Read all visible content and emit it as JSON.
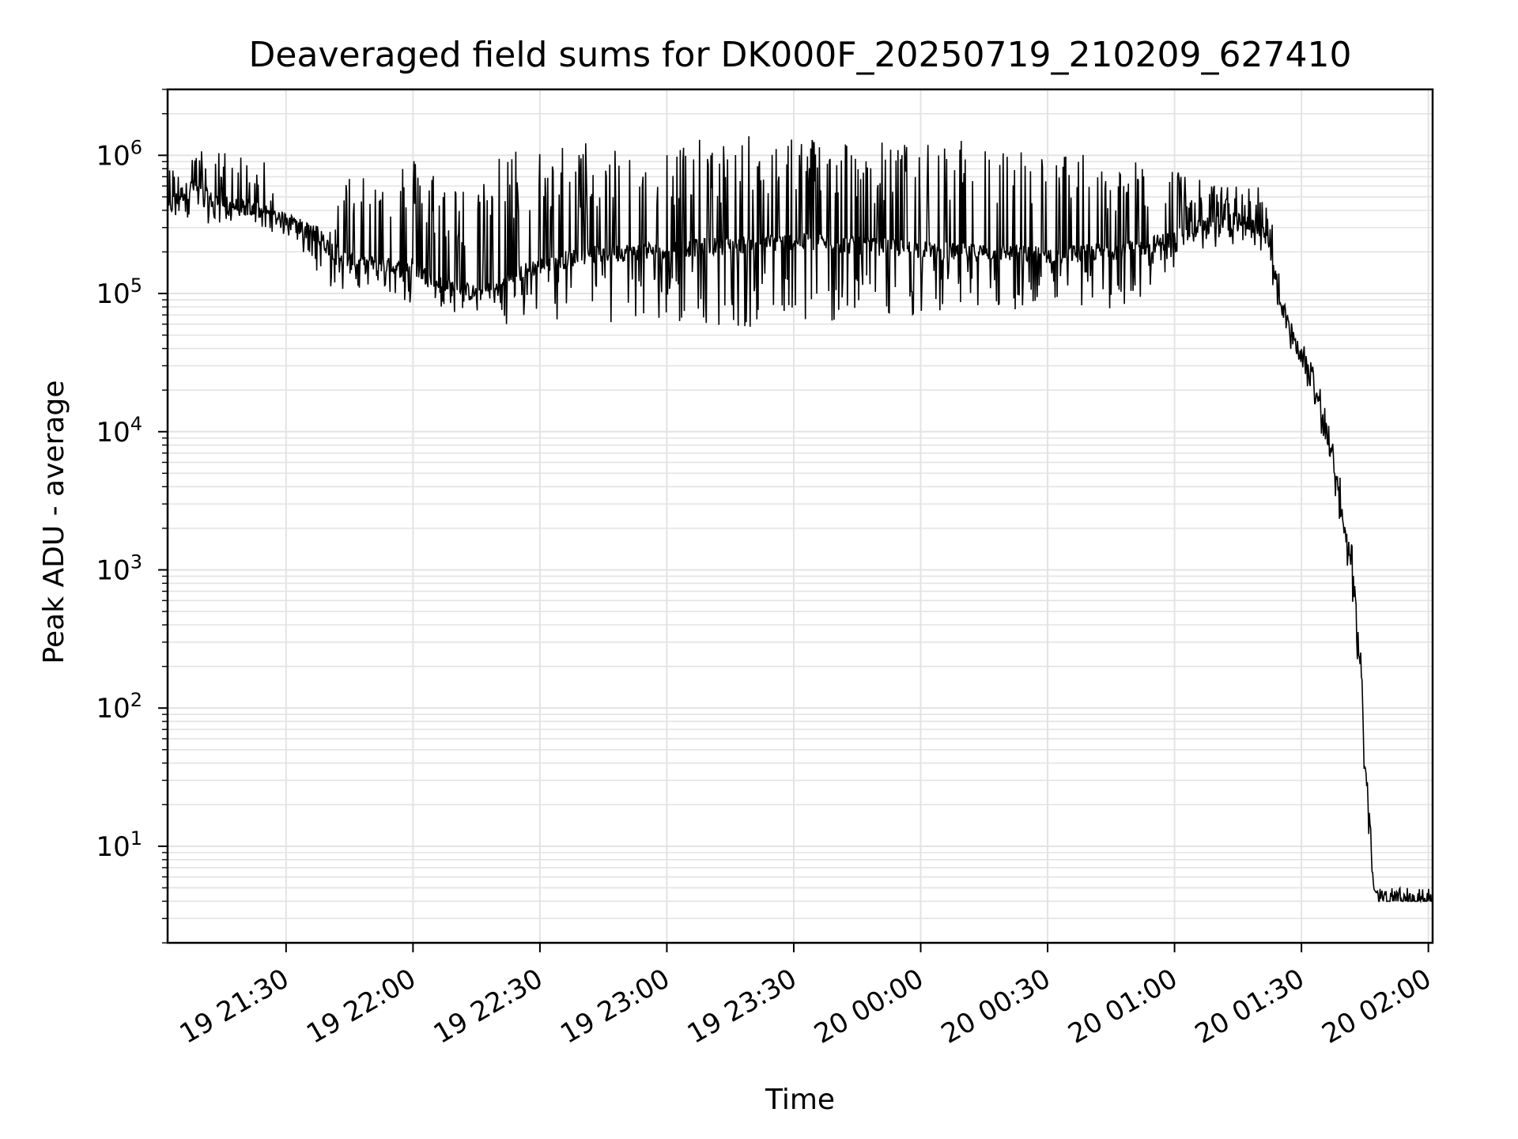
{
  "chart_data": {
    "type": "line",
    "title": "Deaveraged field sums for DK000F_20250719_210209_627410",
    "xlabel": "Time",
    "ylabel": "Peak ADU - average",
    "xlim": [
      "2025-07-19 21:02",
      "2025-07-20 02:01"
    ],
    "ylim": [
      2,
      3000000
    ],
    "yscale": "log",
    "grid": true,
    "line_color": "#000000",
    "x_ticks": [
      {
        "t": "2025-07-19 21:30",
        "label": "19 21:30"
      },
      {
        "t": "2025-07-19 22:00",
        "label": "19 22:00"
      },
      {
        "t": "2025-07-19 22:30",
        "label": "19 22:30"
      },
      {
        "t": "2025-07-19 23:00",
        "label": "19 23:00"
      },
      {
        "t": "2025-07-19 23:30",
        "label": "19 23:30"
      },
      {
        "t": "2025-07-20 00:00",
        "label": "20 00:00"
      },
      {
        "t": "2025-07-20 00:30",
        "label": "20 00:30"
      },
      {
        "t": "2025-07-20 01:00",
        "label": "20 01:00"
      },
      {
        "t": "2025-07-20 01:30",
        "label": "20 01:30"
      },
      {
        "t": "2025-07-20 02:00",
        "label": "20 02:00"
      }
    ],
    "y_ticks": [
      {
        "value": 10,
        "base": "10",
        "exp": "1"
      },
      {
        "value": 100,
        "base": "10",
        "exp": "2"
      },
      {
        "value": 1000,
        "base": "10",
        "exp": "3"
      },
      {
        "value": 10000,
        "base": "10",
        "exp": "4"
      },
      {
        "value": 100000,
        "base": "10",
        "exp": "5"
      },
      {
        "value": 1000000,
        "base": "10",
        "exp": "6"
      }
    ],
    "series": [
      {
        "x": [
          "2025-07-19 21:02",
          "2025-07-19 21:05",
          "2025-07-19 21:08",
          "2025-07-19 21:12",
          "2025-07-19 21:16",
          "2025-07-19 21:20",
          "2025-07-19 21:24",
          "2025-07-19 21:28",
          "2025-07-19 21:32",
          "2025-07-19 21:36",
          "2025-07-19 21:40",
          "2025-07-19 21:44",
          "2025-07-19 21:48",
          "2025-07-19 21:52",
          "2025-07-19 21:56",
          "2025-07-19 22:00",
          "2025-07-19 22:05",
          "2025-07-19 22:10",
          "2025-07-19 22:15",
          "2025-07-19 22:20",
          "2025-07-19 22:25",
          "2025-07-19 22:30",
          "2025-07-19 22:40",
          "2025-07-19 22:50",
          "2025-07-19 23:00",
          "2025-07-19 23:10",
          "2025-07-19 23:20",
          "2025-07-19 23:30",
          "2025-07-19 23:40",
          "2025-07-19 23:50",
          "2025-07-20 00:00",
          "2025-07-20 00:10",
          "2025-07-20 00:20",
          "2025-07-20 00:30",
          "2025-07-20 00:40",
          "2025-07-20 00:50",
          "2025-07-20 01:00",
          "2025-07-20 01:05",
          "2025-07-20 01:10",
          "2025-07-20 01:15",
          "2025-07-20 01:20",
          "2025-07-20 01:23",
          "2025-07-20 01:25",
          "2025-07-20 01:27",
          "2025-07-20 01:29",
          "2025-07-20 01:31",
          "2025-07-20 01:33",
          "2025-07-20 01:35",
          "2025-07-20 01:37",
          "2025-07-20 01:39",
          "2025-07-20 01:41",
          "2025-07-20 01:42",
          "2025-07-20 01:43",
          "2025-07-20 01:44",
          "2025-07-20 01:45",
          "2025-07-20 01:46",
          "2025-07-20 01:47",
          "2025-07-20 01:48",
          "2025-07-20 01:52",
          "2025-07-20 01:56",
          "2025-07-20 02:01"
        ],
        "y": [
          400000,
          520000,
          600000,
          480000,
          440000,
          420000,
          400000,
          350000,
          320000,
          280000,
          220000,
          180000,
          160000,
          170000,
          150000,
          160000,
          120000,
          110000,
          100000,
          110000,
          140000,
          160000,
          190000,
          200000,
          210000,
          220000,
          230000,
          240000,
          230000,
          220000,
          210000,
          200000,
          200000,
          190000,
          200000,
          210000,
          250000,
          300000,
          330000,
          340000,
          300000,
          200000,
          90000,
          55000,
          40000,
          30000,
          20000,
          13000,
          7000,
          3500,
          1500,
          1000,
          500,
          200,
          40,
          20,
          5,
          4,
          4,
          4,
          4
        ],
        "spike_max": [
          800000,
          900000,
          1100000,
          1100000,
          1100000,
          1000000,
          1100000,
          400000,
          360000,
          320000,
          300000,
          700000,
          1000000,
          700000,
          1000000,
          1000000,
          900000,
          700000,
          500000,
          1000000,
          1200000,
          1200000,
          1300000,
          1300000,
          1300000,
          1300000,
          1400000,
          1500000,
          1400000,
          1300000,
          1200000,
          1300000,
          1200000,
          1100000,
          1000000,
          900000,
          800000,
          700000,
          600000,
          600000,
          600000,
          400000,
          120000,
          70000,
          50000,
          40000,
          30000,
          20000,
          10000,
          5000,
          2000,
          1500,
          800,
          300,
          80,
          30,
          5,
          5,
          5,
          5,
          5
        ],
        "spike_min": [
          320000,
          350000,
          330000,
          320000,
          330000,
          320000,
          300000,
          270000,
          240000,
          160000,
          110000,
          90000,
          110000,
          100000,
          100000,
          70000,
          60000,
          70000,
          60000,
          60000,
          60000,
          65000,
          60000,
          55000,
          60000,
          60000,
          55000,
          45000,
          60000,
          65000,
          70000,
          70000,
          70000,
          75000,
          70000,
          80000,
          150000,
          180000,
          210000,
          230000,
          220000,
          120000,
          65000,
          40000,
          30000,
          23000,
          15000,
          9000,
          4500,
          2200,
          900,
          600,
          250,
          100,
          20,
          10,
          4,
          4,
          4,
          4,
          4
        ]
      }
    ]
  }
}
